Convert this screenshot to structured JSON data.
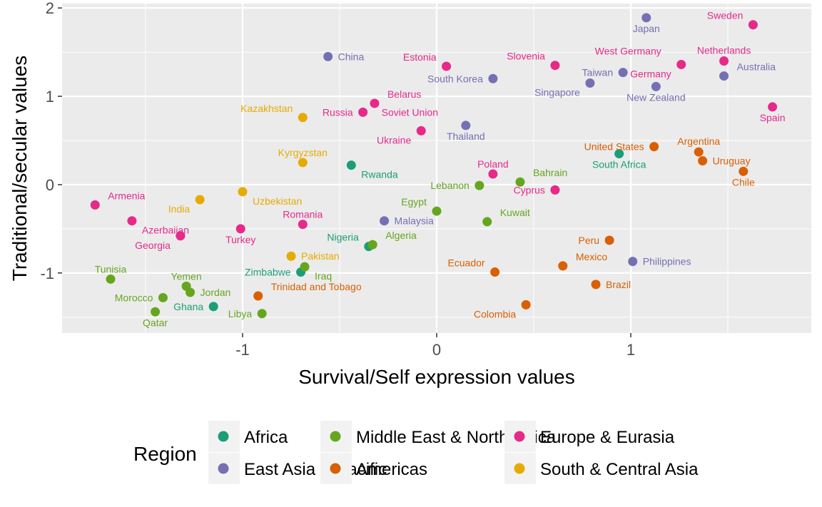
{
  "chart_data": {
    "type": "scatter",
    "title": "",
    "xlabel": "Survival/Self expression values",
    "ylabel": "Traditional/secular values",
    "xlim": [
      -1.93,
      1.93
    ],
    "ylim": [
      -1.68,
      2.05
    ],
    "x_ticks": [
      -1,
      0,
      1
    ],
    "y_ticks": [
      -1,
      0,
      1,
      2
    ],
    "grid": true,
    "legend": {
      "title": "Region",
      "placement": "bottom",
      "entries": [
        {
          "name": "Africa",
          "color": "#1b9e77"
        },
        {
          "name": "East Asia & Pacific",
          "color": "#7570b3"
        },
        {
          "name": "Middle East & North Africa",
          "color": "#66a61e"
        },
        {
          "name": "Americas",
          "color": "#d95f02"
        },
        {
          "name": "Europe & Eurasia",
          "color": "#e7298a"
        },
        {
          "name": "South & Central Asia",
          "color": "#e6ab02"
        }
      ]
    },
    "series": [
      {
        "name": "Africa",
        "color": "#1b9e77",
        "points": [
          {
            "label": "Rwanda",
            "x": -0.44,
            "y": 0.22,
            "lpos": "below-right"
          },
          {
            "label": "South Africa",
            "x": 0.94,
            "y": 0.35,
            "lpos": "below"
          },
          {
            "label": "Nigeria",
            "x": -0.35,
            "y": -0.7,
            "lpos": "upper-left"
          },
          {
            "label": "Zimbabwe",
            "x": -0.7,
            "y": -0.99,
            "lpos": "left"
          },
          {
            "label": "Ghana",
            "x": -1.15,
            "y": -1.38,
            "lpos": "left"
          }
        ]
      },
      {
        "name": "Americas",
        "color": "#d95f02",
        "points": [
          {
            "label": "United States",
            "x": 1.12,
            "y": 0.43,
            "lpos": "left"
          },
          {
            "label": "Argentina",
            "x": 1.35,
            "y": 0.37,
            "lpos": "upper-center"
          },
          {
            "label": "Uruguay",
            "x": 1.37,
            "y": 0.27,
            "lpos": "right"
          },
          {
            "label": "Chile",
            "x": 1.58,
            "y": 0.15,
            "lpos": "below"
          },
          {
            "label": "Peru",
            "x": 0.89,
            "y": -0.63,
            "lpos": "left"
          },
          {
            "label": "Mexico",
            "x": 0.65,
            "y": -0.92,
            "lpos": "upper-right"
          },
          {
            "label": "Ecuador",
            "x": 0.3,
            "y": -0.99,
            "lpos": "upper-left"
          },
          {
            "label": "Brazil",
            "x": 0.82,
            "y": -1.13,
            "lpos": "right"
          },
          {
            "label": "Colombia",
            "x": 0.46,
            "y": -1.36,
            "lpos": "below-left"
          },
          {
            "label": "Trinidad and Tobago",
            "x": -0.92,
            "y": -1.26,
            "lpos": "upper-right"
          }
        ]
      },
      {
        "name": "East Asia & Pacific",
        "color": "#7570b3",
        "points": [
          {
            "label": "Japan",
            "x": 1.08,
            "y": 1.89,
            "lpos": "below"
          },
          {
            "label": "China",
            "x": -0.56,
            "y": 1.45,
            "lpos": "right"
          },
          {
            "label": "South Korea",
            "x": 0.29,
            "y": 1.2,
            "lpos": "left"
          },
          {
            "label": "Taiwan",
            "x": 0.96,
            "y": 1.27,
            "lpos": "left"
          },
          {
            "label": "Singapore",
            "x": 0.79,
            "y": 1.15,
            "lpos": "below-left"
          },
          {
            "label": "New Zealand",
            "x": 1.13,
            "y": 1.11,
            "lpos": "below"
          },
          {
            "label": "Australia",
            "x": 1.48,
            "y": 1.23,
            "lpos": "upper-right"
          },
          {
            "label": "Thailand",
            "x": 0.15,
            "y": 0.67,
            "lpos": "below"
          },
          {
            "label": "Malaysia",
            "x": -0.27,
            "y": -0.41,
            "lpos": "right"
          },
          {
            "label": "Philippines",
            "x": 1.01,
            "y": -0.87,
            "lpos": "right"
          }
        ]
      },
      {
        "name": "Europe & Eurasia",
        "color": "#e7298a",
        "points": [
          {
            "label": "Sweden",
            "x": 1.63,
            "y": 1.81,
            "lpos": "upper-left"
          },
          {
            "label": "Netherlands",
            "x": 1.48,
            "y": 1.4,
            "lpos": "upper-center"
          },
          {
            "label": "Germany",
            "x": 1.26,
            "y": 1.36,
            "lpos": "below-left"
          },
          {
            "label": "West Germany",
            "x": 1.26,
            "y": 1.36,
            "lpos": "upper-left-far"
          },
          {
            "label": "Spain",
            "x": 1.73,
            "y": 0.88,
            "lpos": "below"
          },
          {
            "label": "Slovenia",
            "x": 0.61,
            "y": 1.35,
            "lpos": "upper-left"
          },
          {
            "label": "Estonia",
            "x": 0.05,
            "y": 1.34,
            "lpos": "upper-left"
          },
          {
            "label": "Belarus",
            "x": -0.32,
            "y": 0.92,
            "lpos": "upper-right"
          },
          {
            "label": "Russia",
            "x": -0.38,
            "y": 0.82,
            "lpos": "left"
          },
          {
            "label": "Soviet Union",
            "x": -0.38,
            "y": 0.82,
            "lpos": "right-far"
          },
          {
            "label": "Ukraine",
            "x": -0.08,
            "y": 0.61,
            "lpos": "below-left"
          },
          {
            "label": "Poland",
            "x": 0.29,
            "y": 0.12,
            "lpos": "upper"
          },
          {
            "label": "Cyprus",
            "x": 0.61,
            "y": -0.06,
            "lpos": "left"
          },
          {
            "label": "Armenia",
            "x": -1.76,
            "y": -0.23,
            "lpos": "upper-right"
          },
          {
            "label": "Azerbaijan",
            "x": -1.57,
            "y": -0.41,
            "lpos": "below-right"
          },
          {
            "label": "Georgia",
            "x": -1.32,
            "y": -0.58,
            "lpos": "below-left"
          },
          {
            "label": "Turkey",
            "x": -1.01,
            "y": -0.5,
            "lpos": "below"
          },
          {
            "label": "Romania",
            "x": -0.69,
            "y": -0.45,
            "lpos": "upper"
          }
        ]
      },
      {
        "name": "Middle East & North Africa",
        "color": "#66a61e",
        "points": [
          {
            "label": "Bahrain",
            "x": 0.43,
            "y": 0.03,
            "lpos": "upper-right"
          },
          {
            "label": "Lebanon",
            "x": 0.22,
            "y": -0.01,
            "lpos": "left"
          },
          {
            "label": "Egypt",
            "x": 0.0,
            "y": -0.3,
            "lpos": "upper-left"
          },
          {
            "label": "Kuwait",
            "x": 0.26,
            "y": -0.42,
            "lpos": "upper-right"
          },
          {
            "label": "Algeria",
            "x": -0.33,
            "y": -0.68,
            "lpos": "upper-right"
          },
          {
            "label": "Iraq",
            "x": -0.68,
            "y": -0.93,
            "lpos": "below-right"
          },
          {
            "label": "Tunisia",
            "x": -1.68,
            "y": -1.07,
            "lpos": "upper"
          },
          {
            "label": "Yemen",
            "x": -1.29,
            "y": -1.15,
            "lpos": "upper"
          },
          {
            "label": "Jordan",
            "x": -1.27,
            "y": -1.22,
            "lpos": "right"
          },
          {
            "label": "Morocco",
            "x": -1.41,
            "y": -1.28,
            "lpos": "left"
          },
          {
            "label": "Libya",
            "x": -0.9,
            "y": -1.46,
            "lpos": "left"
          },
          {
            "label": "Qatar",
            "x": -1.45,
            "y": -1.44,
            "lpos": "below"
          }
        ]
      },
      {
        "name": "South & Central Asia",
        "color": "#e6ab02",
        "points": [
          {
            "label": "Kazakhstan",
            "x": -0.69,
            "y": 0.76,
            "lpos": "upper-left"
          },
          {
            "label": "Kyrgyzstan",
            "x": -0.69,
            "y": 0.25,
            "lpos": "upper"
          },
          {
            "label": "India",
            "x": -1.22,
            "y": -0.17,
            "lpos": "below-left"
          },
          {
            "label": "Uzbekistan",
            "x": -1.0,
            "y": -0.08,
            "lpos": "below-right"
          },
          {
            "label": "Pakistan",
            "x": -0.75,
            "y": -0.81,
            "lpos": "right"
          }
        ]
      }
    ]
  }
}
